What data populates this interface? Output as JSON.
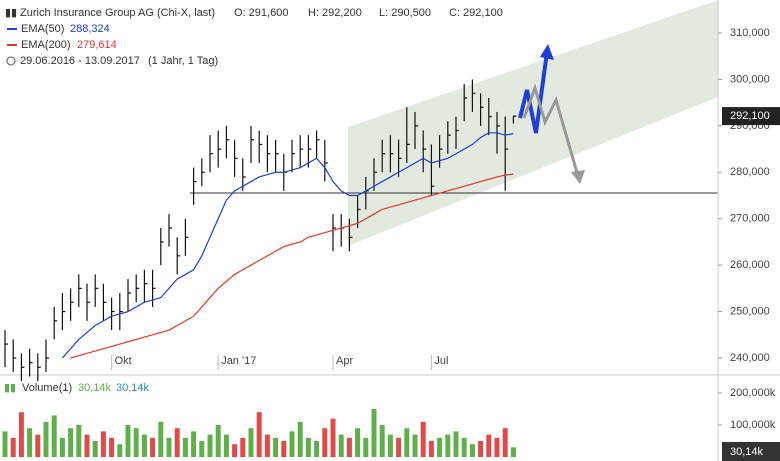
{
  "chart_data": {
    "type": "ohlc",
    "title": "Zurich Insurance Group AG (Chi-X, last)",
    "ohlc_labels": [
      "O: 291,600",
      "H: 292,200",
      "L: 290,500",
      "C: 292,100"
    ],
    "range_label": "29.06.2016 - 13.09.2017",
    "range_note": "(1 Jahr, 1 Tag)",
    "categories": [
      null,
      null,
      null,
      null,
      null,
      null,
      null,
      null,
      null,
      null,
      null,
      null,
      null,
      "Okt",
      null,
      null,
      null,
      null,
      null,
      null,
      null,
      null,
      null,
      null,
      null,
      null,
      "Jan '17",
      null,
      null,
      null,
      null,
      null,
      null,
      null,
      null,
      null,
      null,
      null,
      null,
      null,
      "Apr",
      null,
      null,
      null,
      null,
      null,
      null,
      null,
      null,
      null,
      null,
      null,
      "Jul",
      null,
      null,
      null,
      null,
      null,
      null,
      null,
      null,
      null,
      null
    ],
    "close": [
      243000,
      240000,
      238000,
      239000,
      238000,
      240000,
      248000,
      250000,
      252000,
      255000,
      252000,
      255000,
      252000,
      250000,
      250000,
      254000,
      255000,
      256000,
      255000,
      265000,
      268000,
      262000,
      266000,
      278000,
      280000,
      284000,
      285000,
      287000,
      283000,
      279000,
      287000,
      286000,
      284000,
      284000,
      280000,
      284000,
      285000,
      285000,
      287000,
      282000,
      268000,
      268000,
      266000,
      272000,
      276000,
      280000,
      284000,
      284000,
      283000,
      286000,
      290000,
      285000,
      277000,
      285000,
      288000,
      289000,
      296000,
      297000,
      294000,
      292000,
      290000,
      285000,
      292100
    ],
    "high": [
      246000,
      244000,
      241000,
      242000,
      241000,
      244000,
      251000,
      254000,
      255000,
      258000,
      256000,
      258000,
      256000,
      253000,
      254000,
      257000,
      258000,
      259000,
      259000,
      268000,
      271000,
      266000,
      270000,
      281000,
      283000,
      288000,
      289000,
      290000,
      287000,
      283000,
      290000,
      289000,
      288000,
      287000,
      284000,
      287000,
      288000,
      288000,
      289000,
      287000,
      271000,
      271000,
      270000,
      275000,
      279000,
      283000,
      287000,
      288000,
      287000,
      294000,
      293000,
      289000,
      286000,
      288000,
      291000,
      292000,
      299000,
      300000,
      297000,
      296000,
      293000,
      292000,
      292200
    ],
    "low": [
      238000,
      237000,
      235000,
      236000,
      235000,
      237000,
      244000,
      246000,
      248000,
      251000,
      248000,
      251000,
      248000,
      246000,
      246000,
      250000,
      252000,
      252000,
      251000,
      260000,
      264000,
      258000,
      262000,
      273000,
      277000,
      280000,
      281000,
      283000,
      279000,
      276000,
      282000,
      282000,
      280000,
      280000,
      276000,
      280000,
      281000,
      281000,
      283000,
      278000,
      263000,
      264000,
      263000,
      268000,
      272000,
      276000,
      280000,
      280000,
      279000,
      282000,
      285000,
      280000,
      275000,
      281000,
      284000,
      285000,
      291000,
      293000,
      290000,
      288000,
      284000,
      276000,
      290500
    ],
    "color": "#111111",
    "last_label": "292,100",
    "series": [
      {
        "name": "EMA(50)",
        "color": "#1f3fd6",
        "value_label": "288,324",
        "values": [
          null,
          null,
          null,
          null,
          null,
          null,
          null,
          240000,
          242000,
          244000,
          245500,
          247000,
          248000,
          249000,
          249500,
          250000,
          251000,
          252000,
          252500,
          253000,
          255000,
          257000,
          258000,
          259000,
          262000,
          266000,
          270000,
          274000,
          276000,
          277000,
          278000,
          279000,
          279500,
          280000,
          280000,
          280500,
          281000,
          282000,
          283000,
          281000,
          278000,
          276000,
          275000,
          275000,
          276000,
          277000,
          278000,
          279000,
          280000,
          281000,
          282000,
          283000,
          282000,
          282500,
          283000,
          284000,
          285000,
          286000,
          287500,
          288500,
          288500,
          288000,
          288324
        ]
      },
      {
        "name": "EMA(200)",
        "color": "#e0392b",
        "value_label": "279,614",
        "values": [
          null,
          null,
          null,
          null,
          null,
          null,
          null,
          null,
          240000,
          240500,
          241000,
          241500,
          242000,
          242500,
          243000,
          243500,
          244000,
          244500,
          245000,
          245500,
          246000,
          247000,
          248000,
          249000,
          251000,
          253000,
          255000,
          256500,
          258000,
          259000,
          260000,
          261000,
          262000,
          263000,
          264000,
          264500,
          265000,
          266000,
          266500,
          267000,
          267500,
          268000,
          268500,
          269000,
          270000,
          271000,
          272000,
          272500,
          273000,
          273500,
          274000,
          274500,
          275000,
          275500,
          276000,
          276500,
          277000,
          277500,
          278000,
          278500,
          279000,
          279400,
          279614
        ]
      }
    ],
    "ylim": [
      237415,
      317107
    ],
    "yticks": [
      {
        "value": 240000,
        "label": "240,000"
      },
      {
        "value": 250000,
        "label": "250,000"
      },
      {
        "value": 260000,
        "label": "260,000"
      },
      {
        "value": 270000,
        "label": "270,000"
      },
      {
        "value": 280000,
        "label": "280,000"
      },
      {
        "value": 290000,
        "label": "290,000"
      },
      {
        "value": 300000,
        "label": "300,000"
      },
      {
        "value": 310000,
        "label": "310,000"
      }
    ],
    "volume": {
      "type": "bar",
      "name": "Volume(1)",
      "value_label": "30,14k",
      "up_color": "#5fb04a",
      "down_color": "#e04a4a",
      "values": [
        80,
        60,
        140,
        90,
        70,
        110,
        130,
        60,
        90,
        100,
        70,
        50,
        80,
        60,
        40,
        100,
        90,
        70,
        60,
        110,
        60,
        90,
        60,
        80,
        50,
        70,
        100,
        70,
        40,
        60,
        90,
        140,
        70,
        60,
        50,
        80,
        110,
        60,
        50,
        90,
        120,
        70,
        60,
        90,
        60,
        150,
        100,
        70,
        60,
        90,
        70,
        110,
        50,
        60,
        70,
        80,
        60,
        40,
        50,
        70,
        60,
        90,
        30.14
      ],
      "ylim": [
        -12.5,
        246.9
      ],
      "yticks": [
        {
          "value": 100,
          "label": "100,000k"
        },
        {
          "value": 200,
          "label": "200,000k"
        }
      ]
    }
  }
}
